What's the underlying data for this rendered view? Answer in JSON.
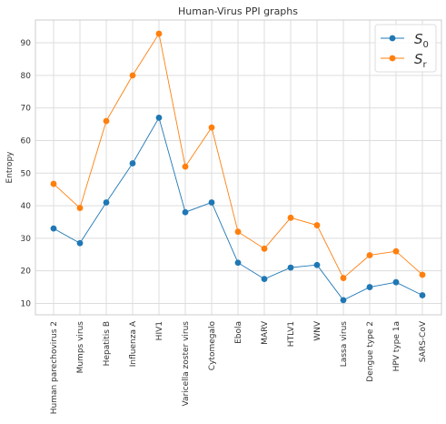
{
  "chart_data": {
    "type": "line",
    "title": "Human-Virus PPI graphs",
    "xlabel": "",
    "ylabel": "Entropy",
    "categories": [
      "Human parechovirus 2",
      "Mumps virus",
      "Hepatitis B",
      "Influenza A",
      "HIV1",
      "Varicella zoster virus",
      "Cytomegalo",
      "Ebola",
      "MARV",
      "HTLV1",
      "WNV",
      "Lassa virus",
      "Dengue type 2",
      "HPV type 1a",
      "SARS-CoV"
    ],
    "ylim": [
      6.5,
      97
    ],
    "yticks": [
      10,
      20,
      30,
      40,
      50,
      60,
      70,
      80,
      90
    ],
    "grid": true,
    "legend_position": "top-right",
    "series": [
      {
        "name": "S",
        "subscript": "0",
        "color": "#1f77b4",
        "values": [
          33,
          28.5,
          41,
          53,
          67,
          38,
          41,
          22.5,
          17.5,
          21,
          21.8,
          11,
          15,
          16.5,
          12.5
        ]
      },
      {
        "name": "S",
        "subscript": "r",
        "color": "#ff7f0e",
        "values": [
          46.7,
          39.3,
          66,
          80,
          92.8,
          52,
          64,
          32,
          26.8,
          36.3,
          34,
          17.8,
          24.8,
          26,
          18.8
        ]
      }
    ]
  }
}
